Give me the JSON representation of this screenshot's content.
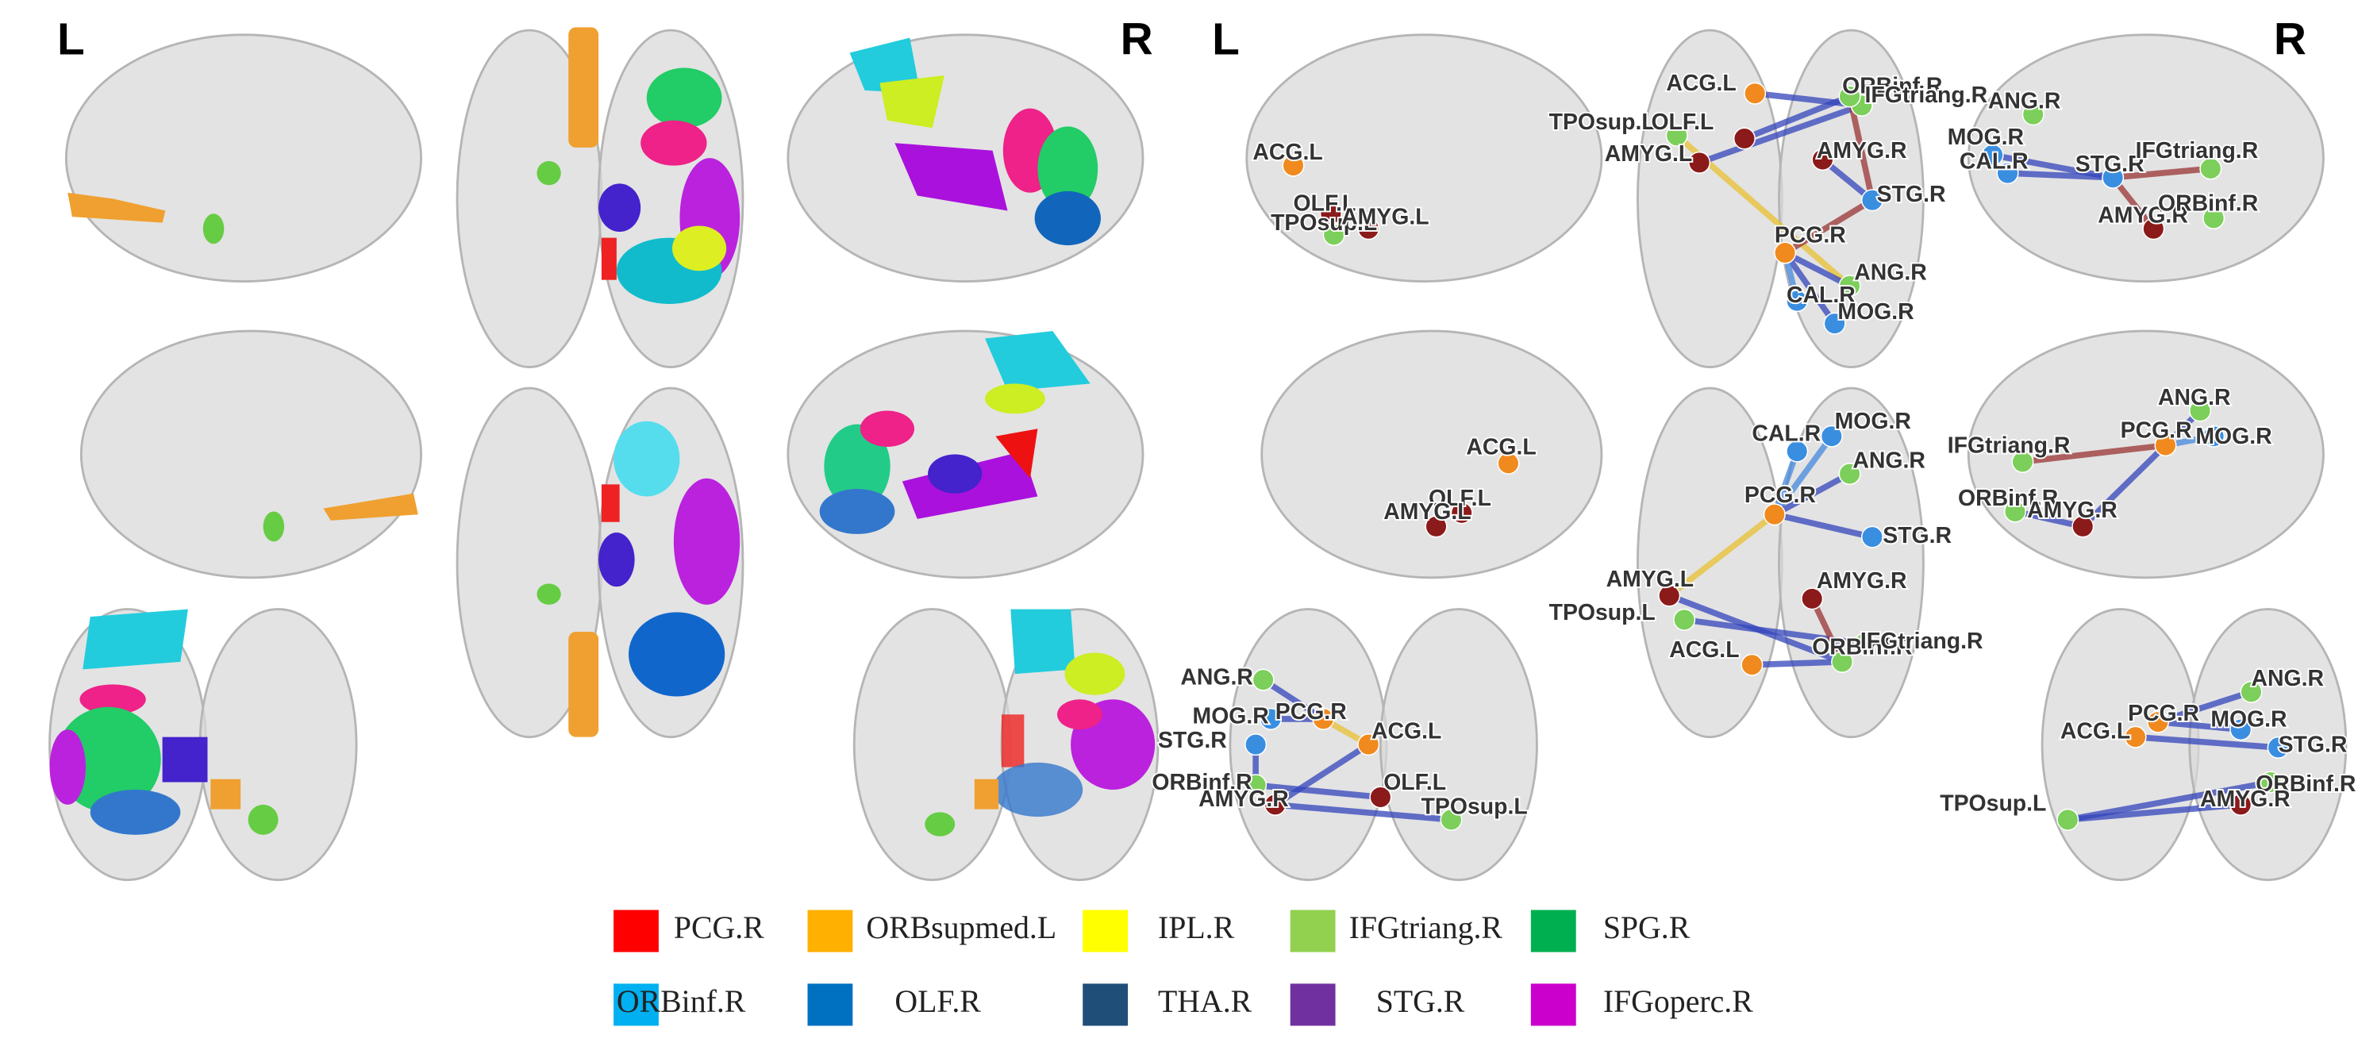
{
  "panel_labels": [
    "L",
    "R",
    "L",
    "R"
  ],
  "views": [
    {
      "nodes": [
        "ACG.L",
        "OLF.L",
        "TPOsup.L",
        "AMYG.L"
      ]
    },
    {
      "nodes": [
        "ACG.L",
        "ORBinf.R",
        "IFGtriang.R",
        "TPOsup.L",
        "OLF.L",
        "AMYG.L",
        "AMYG.R",
        "STG.R",
        "PCG.R",
        "ANG.R",
        "CAL.R",
        "MOG.R"
      ]
    },
    {
      "nodes": [
        "ANG.R",
        "MOG.R",
        "CAL.R",
        "STG.R",
        "IFGtriang.R",
        "AMYG.R",
        "ORBinf.R"
      ]
    },
    {
      "nodes": [
        "ACG.L",
        "OLF.L",
        "AMYG.L"
      ]
    },
    {
      "nodes": [
        "MOG.R",
        "CAL.R",
        "ANG.R",
        "PCG.R",
        "STG.R",
        "AMYG.L",
        "AMYG.R",
        "TPOsup.L",
        "ACG.L",
        "ORBinf.R",
        "IFGtriang.R"
      ]
    },
    {
      "nodes": [
        "ANG.R",
        "PCG.R",
        "MOG.R",
        "IFGtriang.R",
        "ORBinf.R",
        "AMYG.R"
      ]
    },
    {
      "nodes": [
        "ANG.R",
        "MOG.R",
        "PCG.R",
        "ACG.L",
        "STG.R",
        "ORBinf.R",
        "AMYG.R",
        "OLF.L",
        "TPOsup.L"
      ]
    },
    {
      "nodes": [
        "ANG.R",
        "MOG.R",
        "PCG.R",
        "ACG.L",
        "STG.R",
        "ORBinf.R",
        "AMYG.R",
        "TPOsup.L"
      ]
    }
  ],
  "legend": [
    {
      "label": "PCG.R",
      "color": "#ff0000"
    },
    {
      "label": "ORBsupmed.L",
      "color": "#ffb000"
    },
    {
      "label": "IPL.R",
      "color": "#ffff00"
    },
    {
      "label": "IFGtriang.R",
      "color": "#92d050"
    },
    {
      "label": "SPG.R",
      "color": "#00b050"
    },
    {
      "label": "ORBinf.R",
      "color": "#00b0f0"
    },
    {
      "label": "OLF.R",
      "color": "#0070c0"
    },
    {
      "label": "THA.R",
      "color": "#1f4e79"
    },
    {
      "label": "STG.R",
      "color": "#7030a0"
    },
    {
      "label": "IFGoperc.R",
      "color": "#cc00cc"
    }
  ]
}
